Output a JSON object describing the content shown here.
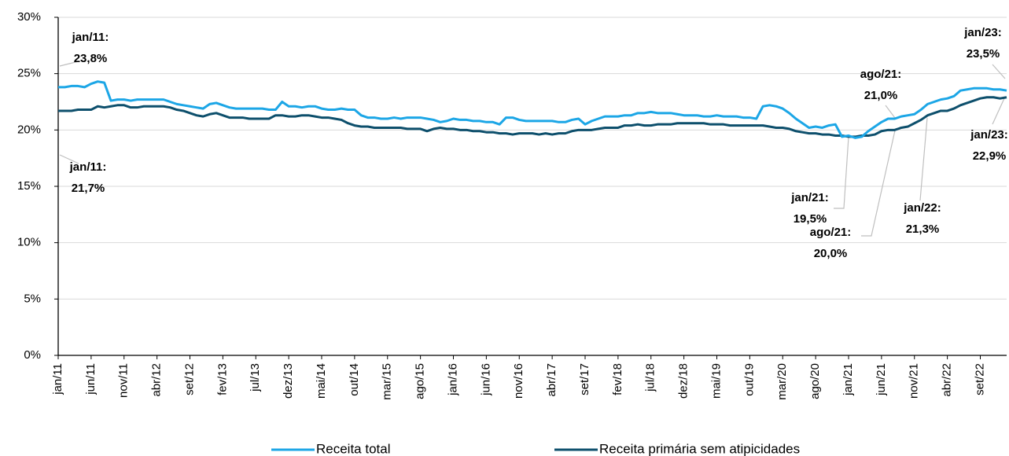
{
  "chart_data": {
    "type": "line",
    "categories": [
      "jan/11",
      null,
      null,
      null,
      null,
      "jun/11",
      null,
      null,
      null,
      null,
      "nov/11",
      null,
      null,
      null,
      null,
      "abr/12",
      null,
      null,
      null,
      null,
      "set/12",
      null,
      null,
      null,
      null,
      "fev/13",
      null,
      null,
      null,
      null,
      "jul/13",
      null,
      null,
      null,
      null,
      "dez/13",
      null,
      null,
      null,
      null,
      "mai/14",
      null,
      null,
      null,
      null,
      "out/14",
      null,
      null,
      null,
      null,
      "mar/15",
      null,
      null,
      null,
      null,
      "ago/15",
      null,
      null,
      null,
      null,
      "jan/16",
      null,
      null,
      null,
      null,
      "jun/16",
      null,
      null,
      null,
      null,
      "nov/16",
      null,
      null,
      null,
      null,
      "abr/17",
      null,
      null,
      null,
      null,
      "set/17",
      null,
      null,
      null,
      null,
      "fev/18",
      null,
      null,
      null,
      null,
      "jul/18",
      null,
      null,
      null,
      null,
      "dez/18",
      null,
      null,
      null,
      null,
      "mai/19",
      null,
      null,
      null,
      null,
      "out/19",
      null,
      null,
      null,
      null,
      "mar/20",
      null,
      null,
      null,
      null,
      "ago/20",
      null,
      null,
      null,
      null,
      "jan/21",
      null,
      null,
      null,
      null,
      "jun/21",
      null,
      null,
      null,
      null,
      "nov/21",
      null,
      null,
      null,
      null,
      "abr/22",
      null,
      null,
      null,
      null,
      "set/22",
      null,
      null,
      null,
      null
    ],
    "series": [
      {
        "name": "Receita total",
        "color": "#1ca6e6",
        "values": [
          23.8,
          23.8,
          23.9,
          23.9,
          23.8,
          24.1,
          24.3,
          24.2,
          22.6,
          22.7,
          22.7,
          22.6,
          22.7,
          22.7,
          22.7,
          22.7,
          22.7,
          22.5,
          22.3,
          22.2,
          22.1,
          22.0,
          21.9,
          22.3,
          22.4,
          22.2,
          22.0,
          21.9,
          21.9,
          21.9,
          21.9,
          21.9,
          21.8,
          21.8,
          22.5,
          22.1,
          22.1,
          22.0,
          22.1,
          22.1,
          21.9,
          21.8,
          21.8,
          21.9,
          21.8,
          21.8,
          21.3,
          21.1,
          21.1,
          21.0,
          21.0,
          21.1,
          21.0,
          21.1,
          21.1,
          21.1,
          21.0,
          20.9,
          20.7,
          20.8,
          21.0,
          20.9,
          20.9,
          20.8,
          20.8,
          20.7,
          20.7,
          20.5,
          21.1,
          21.1,
          20.9,
          20.8,
          20.8,
          20.8,
          20.8,
          20.8,
          20.7,
          20.7,
          20.9,
          21.0,
          20.5,
          20.8,
          21.0,
          21.2,
          21.2,
          21.2,
          21.3,
          21.3,
          21.5,
          21.5,
          21.6,
          21.5,
          21.5,
          21.5,
          21.4,
          21.3,
          21.3,
          21.3,
          21.2,
          21.2,
          21.3,
          21.2,
          21.2,
          21.2,
          21.1,
          21.1,
          21.0,
          22.1,
          22.2,
          22.1,
          21.9,
          21.5,
          21.0,
          20.6,
          20.2,
          20.3,
          20.2,
          20.4,
          20.5,
          19.4,
          19.5,
          19.3,
          19.4,
          19.9,
          20.3,
          20.7,
          21.0,
          21.0,
          21.2,
          21.3,
          21.4,
          21.8,
          22.3,
          22.5,
          22.7,
          22.8,
          23.0,
          23.5,
          23.6,
          23.7,
          23.7,
          23.7,
          23.6,
          23.6,
          23.5
        ]
      },
      {
        "name": "Receita primária sem atipicidades",
        "color": "#0d4f6c",
        "values": [
          21.7,
          21.7,
          21.7,
          21.8,
          21.8,
          21.8,
          22.1,
          22.0,
          22.1,
          22.2,
          22.2,
          22.0,
          22.0,
          22.1,
          22.1,
          22.1,
          22.1,
          22.0,
          21.8,
          21.7,
          21.5,
          21.3,
          21.2,
          21.4,
          21.5,
          21.3,
          21.1,
          21.1,
          21.1,
          21.0,
          21.0,
          21.0,
          21.0,
          21.3,
          21.3,
          21.2,
          21.2,
          21.3,
          21.3,
          21.2,
          21.1,
          21.1,
          21.0,
          20.9,
          20.6,
          20.4,
          20.3,
          20.3,
          20.2,
          20.2,
          20.2,
          20.2,
          20.2,
          20.1,
          20.1,
          20.1,
          19.9,
          20.1,
          20.2,
          20.1,
          20.1,
          20.0,
          20.0,
          19.9,
          19.9,
          19.8,
          19.8,
          19.7,
          19.7,
          19.6,
          19.7,
          19.7,
          19.7,
          19.6,
          19.7,
          19.6,
          19.7,
          19.7,
          19.9,
          20.0,
          20.0,
          20.0,
          20.1,
          20.2,
          20.2,
          20.2,
          20.4,
          20.4,
          20.5,
          20.4,
          20.4,
          20.5,
          20.5,
          20.5,
          20.6,
          20.6,
          20.6,
          20.6,
          20.6,
          20.5,
          20.5,
          20.5,
          20.4,
          20.4,
          20.4,
          20.4,
          20.4,
          20.4,
          20.3,
          20.2,
          20.2,
          20.1,
          19.9,
          19.8,
          19.7,
          19.7,
          19.6,
          19.6,
          19.5,
          19.5,
          19.4,
          19.4,
          19.5,
          19.5,
          19.6,
          19.9,
          20.0,
          20.0,
          20.2,
          20.3,
          20.6,
          20.9,
          21.3,
          21.5,
          21.7,
          21.7,
          21.9,
          22.2,
          22.4,
          22.6,
          22.8,
          22.9,
          22.9,
          22.8,
          22.9
        ]
      }
    ],
    "ylim": [
      0,
      30
    ],
    "yticks": [
      {
        "value": 0,
        "label": "0%"
      },
      {
        "value": 5,
        "label": "5%"
      },
      {
        "value": 10,
        "label": "10%"
      },
      {
        "value": 15,
        "label": "15%"
      },
      {
        "value": 20,
        "label": "20%"
      },
      {
        "value": 25,
        "label": "25%"
      },
      {
        "value": 30,
        "label": "30%"
      }
    ],
    "grid": true,
    "legend": "bottom",
    "annotations": [
      {
        "text": [
          "jan/11:",
          "23,8%"
        ]
      },
      {
        "text": [
          "jan/11:",
          "21,7%"
        ]
      },
      {
        "text": [
          "jan/23:",
          "23,5%"
        ]
      },
      {
        "text": [
          "ago/21:",
          "21,0%"
        ]
      },
      {
        "text": [
          "jan/23:",
          "22,9%"
        ]
      },
      {
        "text": [
          "jan/21:",
          "19,5%"
        ]
      },
      {
        "text": [
          "ago/21:",
          "20,0%"
        ]
      },
      {
        "text": [
          "jan/22:",
          "21,3%"
        ]
      }
    ]
  }
}
